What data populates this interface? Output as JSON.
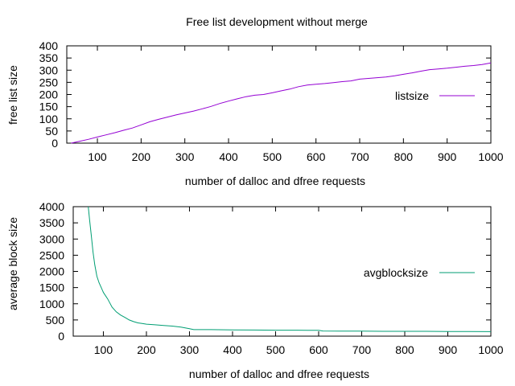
{
  "figure": {
    "title": "Free list development without merge"
  },
  "chart_data": [
    {
      "type": "line",
      "title": "Free list development without merge",
      "xlabel": "number of dalloc and dfree requests",
      "ylabel": "free list size",
      "xlim": [
        30,
        1000
      ],
      "ylim": [
        0,
        400
      ],
      "xticks": [
        100,
        200,
        300,
        400,
        500,
        600,
        700,
        800,
        900,
        1000
      ],
      "yticks": [
        0,
        50,
        100,
        150,
        200,
        250,
        300,
        350,
        400
      ],
      "grid": false,
      "legend": "right",
      "series": [
        {
          "name": "listsize",
          "color": "#9400d3",
          "x": [
            40,
            60,
            80,
            100,
            120,
            140,
            160,
            180,
            200,
            220,
            240,
            260,
            280,
            300,
            320,
            340,
            360,
            380,
            400,
            420,
            440,
            460,
            480,
            500,
            520,
            540,
            560,
            580,
            600,
            620,
            640,
            660,
            680,
            700,
            720,
            740,
            760,
            780,
            800,
            820,
            840,
            860,
            880,
            900,
            920,
            940,
            960,
            980,
            1000
          ],
          "values": [
            0,
            8,
            16,
            25,
            34,
            43,
            53,
            62,
            75,
            88,
            98,
            107,
            116,
            124,
            132,
            141,
            151,
            163,
            173,
            182,
            191,
            197,
            200,
            207,
            215,
            222,
            232,
            239,
            242,
            245,
            249,
            253,
            256,
            263,
            266,
            269,
            272,
            277,
            283,
            289,
            296,
            302,
            305,
            308,
            312,
            316,
            319,
            323,
            330
          ]
        }
      ]
    },
    {
      "type": "line",
      "xlabel": "number of dalloc and dfree requests",
      "ylabel": "average block size",
      "xlim": [
        30,
        1000
      ],
      "ylim": [
        0,
        4000
      ],
      "xticks": [
        100,
        200,
        300,
        400,
        500,
        600,
        700,
        800,
        900,
        1000
      ],
      "yticks": [
        0,
        500,
        1000,
        1500,
        2000,
        2500,
        3000,
        3500,
        4000
      ],
      "grid": false,
      "legend": "right",
      "series": [
        {
          "name": "avgblocksize",
          "color": "#009e73",
          "x": [
            65,
            68,
            72,
            76,
            80,
            85,
            90,
            95,
            100,
            110,
            120,
            130,
            140,
            150,
            160,
            170,
            180,
            190,
            200,
            220,
            240,
            260,
            280,
            300,
            310,
            350,
            400,
            450,
            500,
            550,
            600,
            610,
            650,
            700,
            750,
            800,
            850,
            900,
            950,
            1000
          ],
          "values": [
            4000,
            3600,
            3100,
            2600,
            2200,
            1850,
            1650,
            1500,
            1350,
            1150,
            900,
            750,
            650,
            580,
            500,
            450,
            410,
            390,
            370,
            350,
            330,
            310,
            280,
            230,
            200,
            200,
            195,
            190,
            185,
            185,
            180,
            160,
            155,
            155,
            150,
            150,
            150,
            145,
            145,
            140
          ]
        }
      ]
    }
  ]
}
